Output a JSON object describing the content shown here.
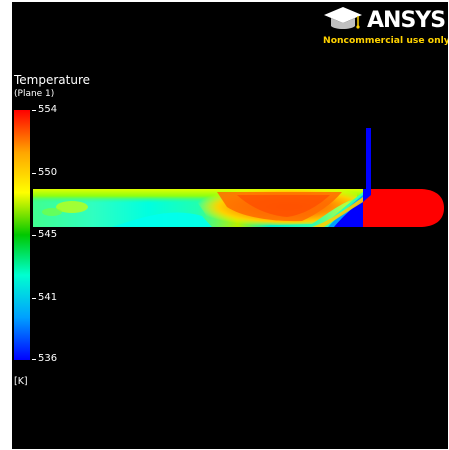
{
  "branding": {
    "logo_text": "ANSYS",
    "license_note": "Noncommercial use only",
    "logo_icon": "graduation-cap-icon"
  },
  "legend": {
    "title": "Temperature",
    "subtitle": "(Plane 1)",
    "unit": "[K]",
    "min": 536,
    "max": 554,
    "ticks": [
      "554",
      "550",
      "545",
      "541",
      "536"
    ],
    "colormap": [
      "#ff0000",
      "#ffa500",
      "#ffff00",
      "#00d000",
      "#00ffd0",
      "#00a0ff",
      "#0000ff"
    ]
  },
  "contour": {
    "field": "Temperature",
    "inlet_color": "#0000ff",
    "outlet_color": "#ff0000",
    "background": "#000000"
  }
}
